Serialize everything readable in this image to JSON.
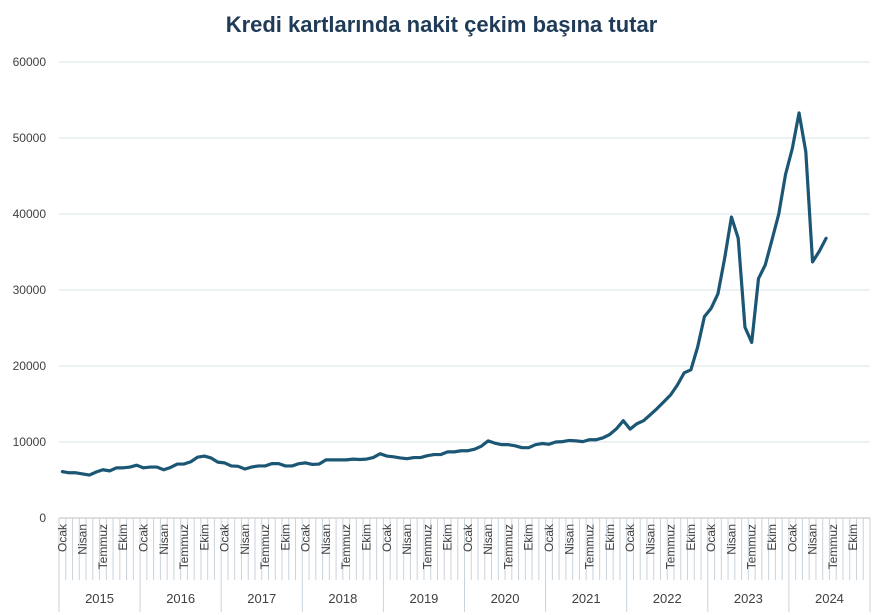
{
  "chart_data": {
    "type": "line",
    "title": "Kredi kartlarında nakit çekim başına tutar",
    "xlabel": "",
    "ylabel": "",
    "ylim": [
      0,
      60000
    ],
    "yticks": [
      0,
      10000,
      20000,
      30000,
      40000,
      50000,
      60000
    ],
    "grid": true,
    "legend": "none",
    "month_labels": [
      "Ocak",
      "Nisan",
      "Temmuz",
      "Ekim"
    ],
    "years": [
      "2015",
      "2016",
      "2017",
      "2018",
      "2019",
      "2020",
      "2021",
      "2022",
      "2023",
      "2024"
    ],
    "series": [
      {
        "color": "#1b5774",
        "values": [
          6100,
          5950,
          5950,
          5800,
          5650,
          6050,
          6350,
          6200,
          6600,
          6600,
          6700,
          6950,
          6600,
          6700,
          6700,
          6350,
          6650,
          7100,
          7100,
          7400,
          8000,
          8150,
          7900,
          7350,
          7250,
          6850,
          6800,
          6450,
          6700,
          6850,
          6850,
          7150,
          7150,
          6850,
          6850,
          7150,
          7250,
          7050,
          7100,
          7650,
          7650,
          7650,
          7650,
          7750,
          7700,
          7750,
          7950,
          8450,
          8150,
          8050,
          7900,
          7800,
          7950,
          7950,
          8200,
          8350,
          8350,
          8700,
          8700,
          8850,
          8850,
          9050,
          9450,
          10150,
          9850,
          9650,
          9650,
          9500,
          9250,
          9250,
          9650,
          9800,
          9700,
          10000,
          10050,
          10200,
          10150,
          10050,
          10300,
          10300,
          10550,
          11000,
          11750,
          12800,
          11700,
          12400,
          12800,
          13600,
          14400,
          15300,
          16200,
          17500,
          19100,
          19500,
          22500,
          26500,
          27600,
          29500,
          34200,
          39600,
          36800,
          25100,
          23100,
          31500,
          33300,
          36600,
          40000,
          45200,
          48600,
          53300,
          48200,
          33700,
          35100,
          36800
        ]
      }
    ]
  }
}
